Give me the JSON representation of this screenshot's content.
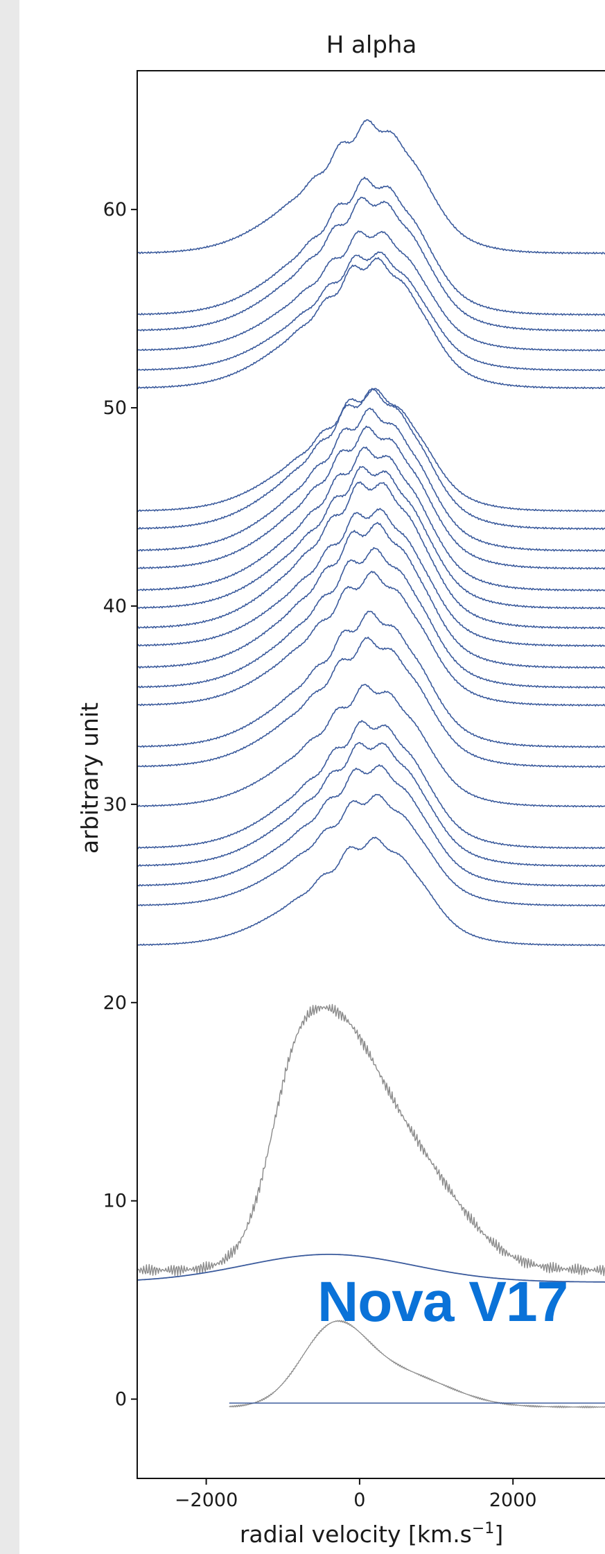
{
  "chart_data": {
    "type": "line",
    "title": "H alpha",
    "xlabel": "radial velocity [km.s",
    "xlabel_sup": "−1",
    "xlabel_tail": "]",
    "ylabel": "arbitrary unit",
    "xlim": [
      -2900,
      3200
    ],
    "ylim": [
      -4,
      67
    ],
    "xticks": [
      {
        "value": -2000,
        "label": "−2000"
      },
      {
        "value": 0,
        "label": "0"
      },
      {
        "value": 2000,
        "label": "2000"
      }
    ],
    "yticks": [
      {
        "value": 0,
        "label": "0"
      },
      {
        "value": 10,
        "label": "10"
      },
      {
        "value": 20,
        "label": "20"
      },
      {
        "value": 30,
        "label": "30"
      },
      {
        "value": 40,
        "label": "40"
      },
      {
        "value": 50,
        "label": "50"
      },
      {
        "value": 60,
        "label": "60"
      }
    ],
    "grid": false,
    "colors": {
      "blue": "#3a5a9c",
      "gray": "#8a8a8a"
    },
    "blue_spectra": [
      {
        "baseline": 57.8,
        "peak": 6.3
      },
      {
        "baseline": 54.7,
        "peak": 6.5
      },
      {
        "baseline": 53.9,
        "peak": 6.4
      },
      {
        "baseline": 52.9,
        "peak": 5.8
      },
      {
        "baseline": 51.9,
        "peak": 5.7
      },
      {
        "baseline": 51.0,
        "peak": 6.2
      },
      {
        "baseline": 44.8,
        "peak": 5.8
      },
      {
        "baseline": 43.9,
        "peak": 6.6
      },
      {
        "baseline": 42.8,
        "peak": 6.7
      },
      {
        "baseline": 41.9,
        "peak": 6.7
      },
      {
        "baseline": 40.8,
        "peak": 6.8
      },
      {
        "baseline": 39.9,
        "peak": 6.8
      },
      {
        "baseline": 38.9,
        "peak": 7.1
      },
      {
        "baseline": 38.0,
        "peak": 6.6
      },
      {
        "baseline": 36.9,
        "peak": 6.9
      },
      {
        "baseline": 35.9,
        "peak": 6.6
      },
      {
        "baseline": 35.0,
        "peak": 6.3
      },
      {
        "baseline": 32.9,
        "peak": 6.4
      },
      {
        "baseline": 31.9,
        "peak": 6.1
      },
      {
        "baseline": 29.9,
        "peak": 5.8
      },
      {
        "baseline": 27.8,
        "peak": 6.1
      },
      {
        "baseline": 26.9,
        "peak": 6.0
      },
      {
        "baseline": 25.9,
        "peak": 5.8
      },
      {
        "baseline": 24.9,
        "peak": 5.3
      },
      {
        "baseline": 22.9,
        "peak": 5.1
      }
    ],
    "low_blue_spectra": [
      {
        "baseline": 5.9,
        "peak": 1.4
      },
      {
        "baseline": -0.2,
        "peak": 0.0
      }
    ],
    "gray_spectra": [
      {
        "baseline": 6.5,
        "peak": 14.2
      },
      {
        "baseline": -0.4,
        "peak": 4.2
      }
    ]
  },
  "overlay": {
    "text": "Nova V17",
    "color": "#0a72d8"
  }
}
